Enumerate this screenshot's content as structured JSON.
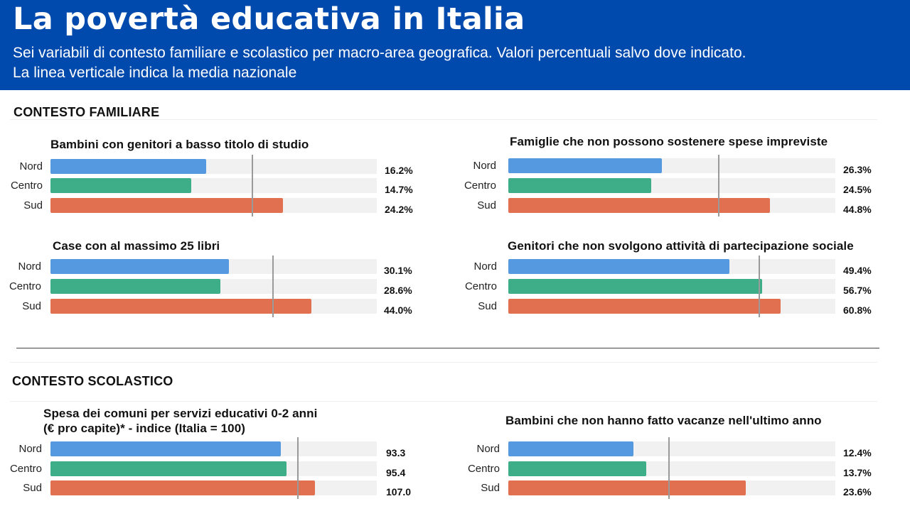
{
  "header": {
    "title": "La povertà educativa in Italia",
    "subtitle_line1": "Sei variabili di contesto familiare e scolastico per macro-area geografica. Valori percentuali salvo dove indicato.",
    "subtitle_line2": "La linea verticale indica la media nazionale"
  },
  "sections": {
    "family": "CONTESTO FAMILIARE",
    "school": "CONTESTO SCOLASTICO"
  },
  "colors": {
    "header_bg": "#004aad",
    "Nord": "#5599e0",
    "Centro": "#3dae88",
    "Sud": "#e07050"
  },
  "chart_data": [
    {
      "type": "bar",
      "title": "Bambini con genitori a basso titolo di studio",
      "categories": [
        "Nord",
        "Centro",
        "Sud"
      ],
      "values": [
        16.2,
        14.7,
        24.2
      ],
      "labels": [
        "16.2%",
        "14.7%",
        "24.2%"
      ],
      "unit": "%",
      "xlim": [
        0,
        34
      ],
      "reference_line": 21.0
    },
    {
      "type": "bar",
      "title": "Famiglie che non possono sostenere spese impreviste",
      "categories": [
        "Nord",
        "Centro",
        "Sud"
      ],
      "values": [
        26.3,
        24.5,
        44.8
      ],
      "labels": [
        "26.3%",
        "24.5%",
        "44.8%"
      ],
      "unit": "%",
      "xlim": [
        0,
        56
      ],
      "reference_line": 36.0
    },
    {
      "type": "bar",
      "title": "Case con al massimo 25 libri",
      "categories": [
        "Nord",
        "Centro",
        "Sud"
      ],
      "values": [
        30.1,
        28.6,
        44.0
      ],
      "labels": [
        "30.1%",
        "28.6%",
        "44.0%"
      ],
      "unit": "%",
      "xlim": [
        0,
        55
      ],
      "reference_line": 37.5
    },
    {
      "type": "bar",
      "title": "Genitori che non svolgono attività di partecipazione sociale",
      "categories": [
        "Nord",
        "Centro",
        "Sud"
      ],
      "values": [
        49.4,
        56.7,
        60.8
      ],
      "labels": [
        "49.4%",
        "56.7%",
        "60.8%"
      ],
      "unit": "%",
      "xlim": [
        0,
        73
      ],
      "reference_line": 56.0
    },
    {
      "type": "bar",
      "title_line1": "Spesa dei comuni per servizi educativi 0-2 anni",
      "title_line2": "(€ pro capite)* - indice (Italia = 100)",
      "categories": [
        "Nord",
        "Centro",
        "Sud"
      ],
      "values": [
        93.3,
        95.4,
        107.0
      ],
      "labels": [
        "93.3",
        "95.4",
        "107.0"
      ],
      "unit": "index",
      "xlim": [
        0,
        132
      ],
      "reference_line": 100
    },
    {
      "type": "bar",
      "title": "Bambini che non hanno fatto vacanze nell'ultimo anno",
      "categories": [
        "Nord",
        "Centro",
        "Sud"
      ],
      "values": [
        12.4,
        13.7,
        23.6
      ],
      "labels": [
        "12.4%",
        "13.7%",
        "23.6%"
      ],
      "unit": "%",
      "xlim": [
        0,
        32.5
      ],
      "reference_line": 16.0
    }
  ]
}
